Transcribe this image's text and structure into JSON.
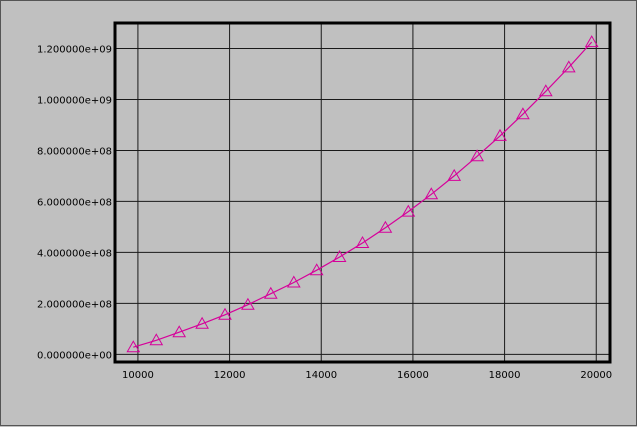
{
  "colors": {
    "background": "#c0c0c0",
    "series": "#d6009a",
    "grid": "#1a1a1a",
    "frame": "#000000"
  },
  "chart_data": {
    "type": "line",
    "title": "",
    "xlabel": "",
    "ylabel": "",
    "xlim": [
      9500,
      20300
    ],
    "ylim": [
      -30000000,
      1300000000
    ],
    "grid": true,
    "legend": "none",
    "marker": "triangle-open",
    "x_ticks": [
      10000,
      12000,
      14000,
      16000,
      18000,
      20000
    ],
    "x_tick_labels": [
      "10000",
      "12000",
      "14000",
      "16000",
      "18000",
      "20000"
    ],
    "y_ticks": [
      0,
      200000000,
      400000000,
      600000000,
      800000000,
      1000000000,
      1200000000
    ],
    "y_tick_labels": [
      "0.000000e+00",
      "2.000000e+08",
      "4.000000e+08",
      "6.000000e+08",
      "8.000000e+08",
      "1.000000e+09",
      "1.200000e+09"
    ],
    "series": [
      {
        "x": [
          9900,
          10400,
          10900,
          11400,
          11900,
          12400,
          12900,
          13400,
          13900,
          14400,
          14900,
          15400,
          15900,
          16400,
          16900,
          17400,
          17900,
          18400,
          18900,
          19400,
          19900
        ],
        "y": [
          28000000,
          55000000,
          87000000,
          120000000,
          155000000,
          195000000,
          238000000,
          282000000,
          330000000,
          382000000,
          437000000,
          497000000,
          560000000,
          628000000,
          700000000,
          777000000,
          857000000,
          942000000,
          1032000000,
          1126000000,
          1225000000
        ]
      }
    ]
  }
}
